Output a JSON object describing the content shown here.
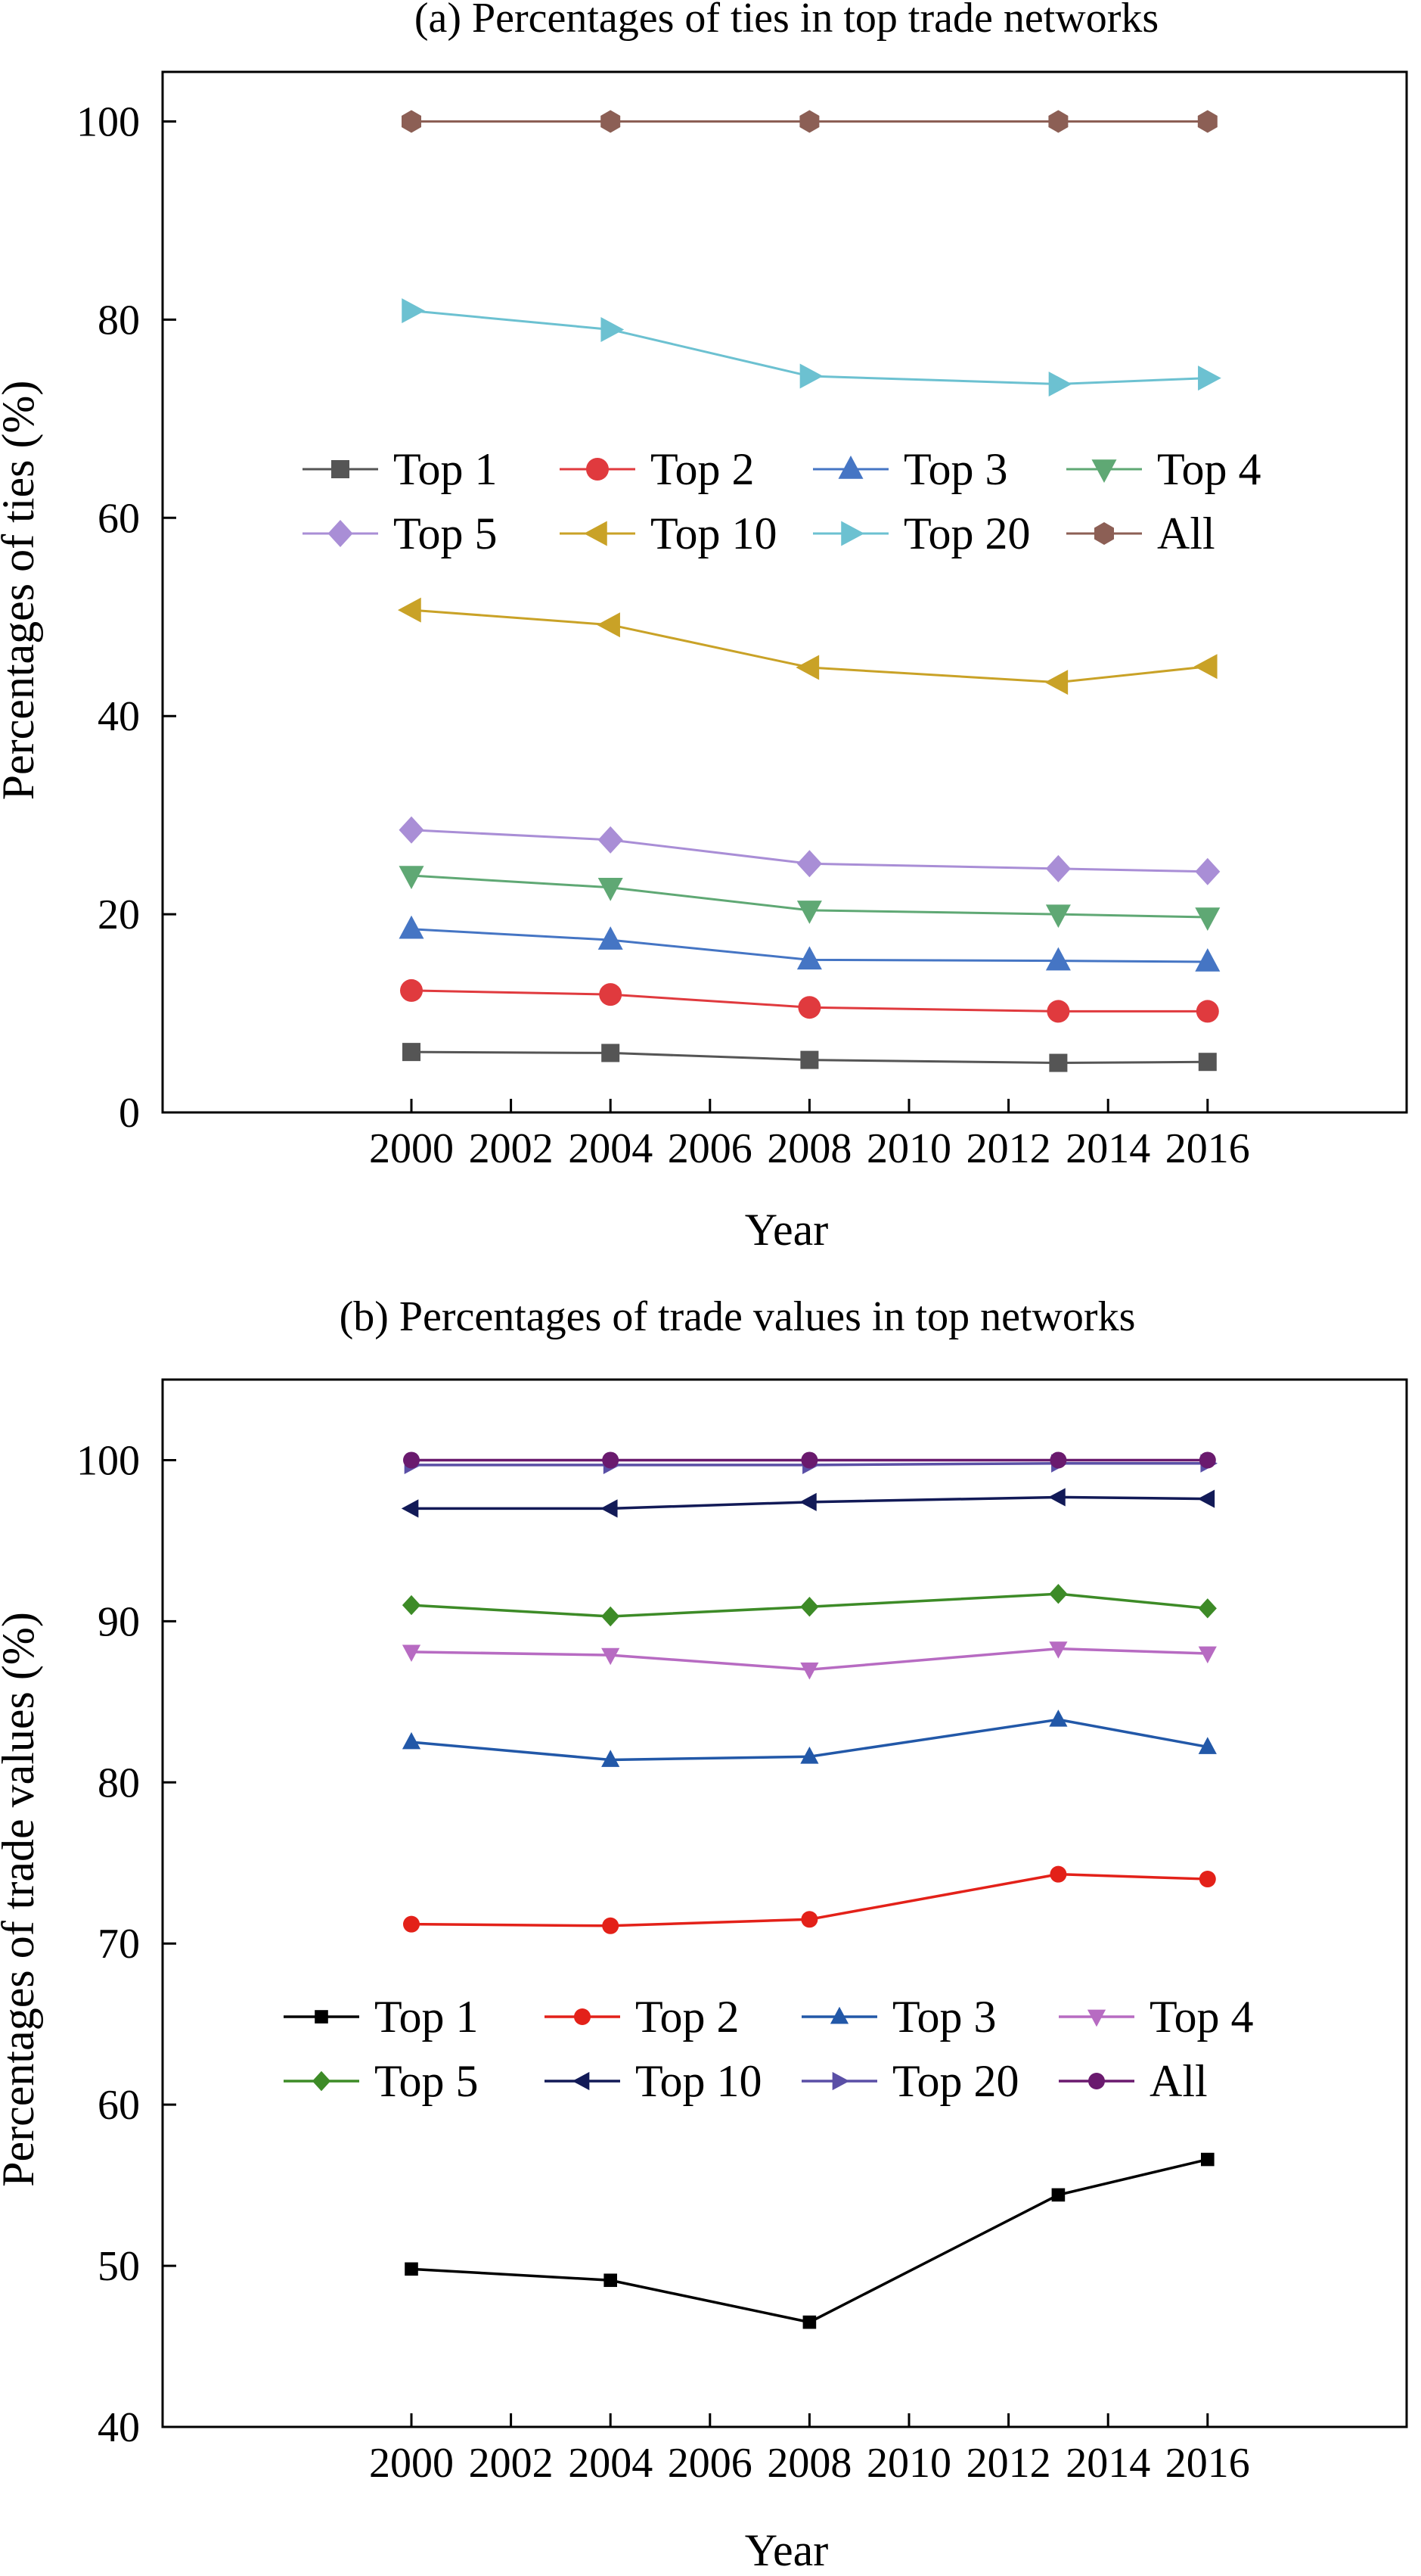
{
  "chart_data": [
    {
      "type": "line",
      "title": "(a) Percentages of ties in top trade networks",
      "xlabel": "Year",
      "ylabel": "Percentages of ties (%)",
      "xlim": [
        1995,
        2020
      ],
      "ylim": [
        0,
        105
      ],
      "xticks": [
        2000,
        2002,
        2004,
        2006,
        2008,
        2010,
        2012,
        2014,
        2016
      ],
      "yticks": [
        0,
        20,
        40,
        60,
        80,
        100
      ],
      "x": [
        2000,
        2004,
        2008,
        2013,
        2016
      ],
      "grid": false,
      "legend": "center",
      "series": [
        {
          "name": "Top 1",
          "color": "#555555",
          "marker": "square",
          "values": [
            6.1,
            6.0,
            5.3,
            5.0,
            5.1
          ]
        },
        {
          "name": "Top 2",
          "color": "#e03a3e",
          "marker": "circle",
          "values": [
            12.3,
            11.9,
            10.6,
            10.2,
            10.2
          ]
        },
        {
          "name": "Top 3",
          "color": "#4575c4",
          "marker": "triangle-up",
          "values": [
            18.5,
            17.4,
            15.4,
            15.3,
            15.2
          ]
        },
        {
          "name": "Top 4",
          "color": "#5fa874",
          "marker": "triangle-down",
          "values": [
            23.9,
            22.7,
            20.4,
            20.0,
            19.7
          ]
        },
        {
          "name": "Top 5",
          "color": "#a98ed6",
          "marker": "diamond",
          "values": [
            28.5,
            27.5,
            25.1,
            24.6,
            24.3
          ]
        },
        {
          "name": "Top 10",
          "color": "#c9a227",
          "marker": "triangle-left",
          "values": [
            50.7,
            49.2,
            44.9,
            43.4,
            45.0
          ]
        },
        {
          "name": "Top 20",
          "color": "#6cc1d1",
          "marker": "triangle-right",
          "values": [
            80.9,
            79.0,
            74.3,
            73.5,
            74.1
          ]
        },
        {
          "name": "All",
          "color": "#8c5f55",
          "marker": "hexagon",
          "values": [
            100,
            100,
            100,
            100,
            100
          ]
        }
      ]
    },
    {
      "type": "line",
      "title": "(b) Percentages of trade values in top networks",
      "xlabel": "Year",
      "ylabel": "Percentages of trade values (%)",
      "xlim": [
        1995,
        2020
      ],
      "ylim": [
        40,
        105
      ],
      "xticks": [
        2000,
        2002,
        2004,
        2006,
        2008,
        2010,
        2012,
        2014,
        2016
      ],
      "yticks": [
        40,
        50,
        60,
        70,
        80,
        90,
        100
      ],
      "x": [
        2000,
        2004,
        2008,
        2013,
        2016
      ],
      "grid": false,
      "legend": "center",
      "series": [
        {
          "name": "Top 1",
          "color": "#000000",
          "marker": "square",
          "values": [
            49.8,
            49.1,
            46.5,
            54.4,
            56.6
          ]
        },
        {
          "name": "Top 2",
          "color": "#e32119",
          "marker": "circle",
          "values": [
            71.2,
            71.1,
            71.5,
            74.3,
            74.0
          ]
        },
        {
          "name": "Top 3",
          "color": "#2258a8",
          "marker": "triangle-up",
          "values": [
            82.5,
            81.4,
            81.6,
            83.9,
            82.2
          ]
        },
        {
          "name": "Top 4",
          "color": "#b76bc2",
          "marker": "triangle-down",
          "values": [
            88.1,
            87.9,
            87.0,
            88.3,
            88.0
          ]
        },
        {
          "name": "Top 5",
          "color": "#3d8b27",
          "marker": "diamond",
          "values": [
            91.0,
            90.3,
            90.9,
            91.7,
            90.8
          ]
        },
        {
          "name": "Top 10",
          "color": "#121a57",
          "marker": "triangle-left",
          "values": [
            97.0,
            97.0,
            97.4,
            97.7,
            97.6
          ]
        },
        {
          "name": "Top 20",
          "color": "#5a4fa6",
          "marker": "triangle-right",
          "values": [
            99.7,
            99.7,
            99.7,
            99.8,
            99.8
          ]
        },
        {
          "name": "All",
          "color": "#6a1a6e",
          "marker": "circle",
          "values": [
            100,
            100,
            100,
            100,
            100
          ]
        }
      ]
    }
  ]
}
